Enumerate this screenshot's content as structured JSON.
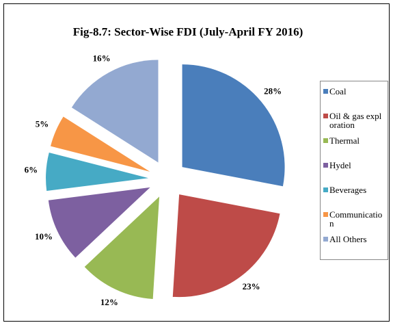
{
  "chart_data": {
    "type": "pie",
    "title": "Fig-8.7: Sector-Wise FDI (July-April FY 2016)",
    "categories": [
      "Coal",
      "Oil & gas exploration",
      "Thermal",
      "Hydel",
      "Beverages",
      "Communication",
      "All Others"
    ],
    "values": [
      28,
      23,
      12,
      10,
      6,
      5,
      16
    ],
    "value_labels": [
      "28%",
      "23%",
      "12%",
      "10%",
      "6%",
      "5%",
      "16%"
    ],
    "colors": [
      "#4a7ebb",
      "#be4b48",
      "#98b954",
      "#7d60a0",
      "#46aac5",
      "#f79646",
      "#93a9d1"
    ],
    "legend": "right"
  }
}
